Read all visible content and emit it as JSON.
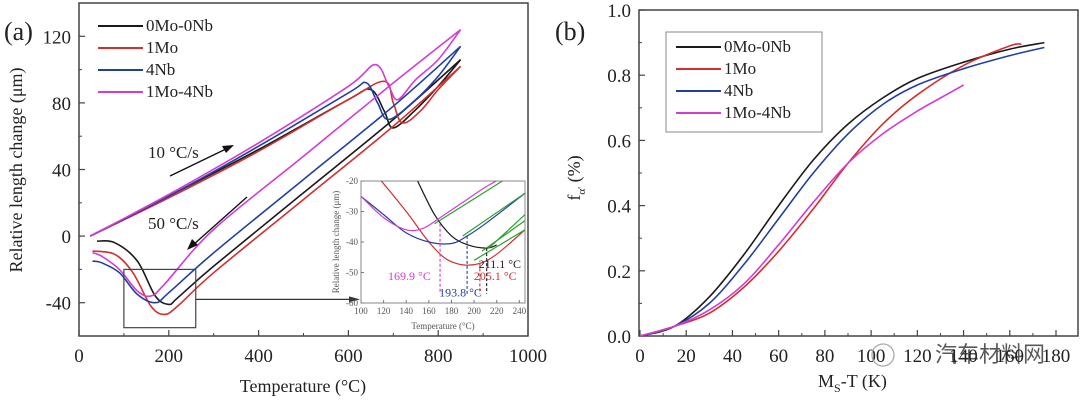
{
  "chart_data": [
    {
      "panel_label": "(a)",
      "type": "line",
      "title": "",
      "xlabel": "Temperature (°C)",
      "ylabel": "Relative length change (μm)",
      "xlim": [
        0,
        1000
      ],
      "ylim": [
        -60,
        140
      ],
      "xticks": [
        0,
        200,
        400,
        600,
        800,
        1000
      ],
      "yticks": [
        -40,
        0,
        40,
        80,
        120
      ],
      "xtick_labels": [
        "0",
        "200",
        "400",
        "600",
        "800",
        "1000"
      ],
      "ytick_labels": [
        "-40",
        "0",
        "40",
        "80",
        "120"
      ],
      "legend": {
        "position": "top-left",
        "entries": [
          "0Mo-0Nb",
          "1Mo",
          "4Nb",
          "1Mo-4Nb"
        ]
      },
      "annotations": [
        "10 °C/s",
        "50 °C/s"
      ],
      "series": [
        {
          "name": "0Mo-0Nb",
          "color": "#1a1a1a",
          "heating": {
            "x": [
              25,
              200,
              400,
              600,
              650,
              680,
              700,
              750,
              800,
              850
            ],
            "y": [
              0,
              24,
              52,
              82,
              88,
              75,
              65,
              76,
              90,
              106
            ]
          },
          "cooling": {
            "x": [
              850,
              700,
              500,
              300,
              220,
              200,
              170,
              130,
              80,
              40
            ],
            "y": [
              106,
              70,
              26,
              -18,
              -37,
              -41,
              -36,
              -15,
              -4,
              -3
            ]
          }
        },
        {
          "name": "1Mo",
          "color": "#d03030",
          "heating": {
            "x": [
              25,
              200,
              400,
              600,
              680,
              700,
              720,
              760,
              800,
              850
            ],
            "y": [
              0,
              23,
              51,
              82,
              93,
              80,
              68,
              75,
              88,
              102
            ]
          },
          "cooling": {
            "x": [
              850,
              700,
              500,
              300,
              220,
              190,
              160,
              120,
              80,
              30
            ],
            "y": [
              102,
              66,
              22,
              -22,
              -42,
              -47,
              -42,
              -22,
              -11,
              -9
            ]
          }
        },
        {
          "name": "4Nb",
          "color": "#2040a0",
          "heating": {
            "x": [
              25,
              200,
              400,
              600,
              640,
              665,
              690,
              750,
              800,
              850
            ],
            "y": [
              0,
              24,
              54,
              86,
              92,
              80,
              70,
              82,
              96,
              114
            ]
          },
          "cooling": {
            "x": [
              850,
              700,
              500,
              300,
              200,
              170,
              130,
              90,
              50,
              30
            ],
            "y": [
              114,
              78,
              34,
              -10,
              -34,
              -40,
              -35,
              -22,
              -16,
              -15
            ]
          }
        },
        {
          "name": "1Mo-4Nb",
          "color": "#d23cd2",
          "heating": {
            "x": [
              25,
              200,
              400,
              600,
              660,
              690,
              710,
              750,
              800,
              850
            ],
            "y": [
              0,
              25,
              56,
              90,
              103,
              90,
              82,
              94,
              106,
              124
            ]
          },
          "cooling": {
            "x": [
              850,
              700,
              500,
              300,
              190,
              160,
              130,
              90,
              50,
              30
            ],
            "y": [
              124,
              92,
              48,
              4,
              -29,
              -36,
              -33,
              -20,
              -12,
              -10
            ]
          }
        }
      ],
      "zoom_box": {
        "xlim": [
          100,
          260
        ],
        "ylim": [
          -55,
          -20
        ]
      },
      "inset": {
        "xlabel": "Temperature (°C)",
        "ylabel": "Relative length change (μm)",
        "xlim": [
          100,
          245
        ],
        "ylim": [
          -60,
          -20
        ],
        "xticks": [
          100,
          120,
          140,
          160,
          180,
          200,
          220,
          240
        ],
        "yticks": [
          -60,
          -50,
          -40,
          -30,
          -20
        ],
        "xtick_labels": [
          "100",
          "120",
          "140",
          "160",
          "180",
          "200",
          "220",
          "240"
        ],
        "ytick_labels": [
          "-60",
          "-50",
          "-40",
          "-30",
          "-20"
        ],
        "fit_line_color": "#2ca02c",
        "series": [
          {
            "name": "0Mo-0Nb",
            "color": "#1a1a1a",
            "x": [
              150,
              165,
              180,
              195,
              211,
              220
            ],
            "y": [
              -20,
              -31,
              -38,
              -41,
              -42,
              -41
            ]
          },
          {
            "name": "1Mo",
            "color": "#d03030",
            "x": [
              118,
              140,
              160,
              175,
              190,
              205,
              220,
              245
            ],
            "y": [
              -20,
              -30,
              -40,
              -45.5,
              -47.5,
              -47,
              -44,
              -36
            ]
          },
          {
            "name": "4Nb",
            "color": "#2040a0",
            "x": [
              100,
              120,
              140,
              160,
              180,
              194,
              210,
              245
            ],
            "y": [
              -25,
              -31,
              -37,
              -40,
              -40.5,
              -38,
              -34,
              -24
            ]
          },
          {
            "name": "1Mo-4Nb",
            "color": "#d23cd2",
            "x": [
              100,
              120,
              140,
              155,
              170,
              190,
              210,
              230
            ],
            "y": [
              -25,
              -32,
              -36,
              -35.5,
              -32,
              -27,
              -22,
              -18
            ]
          }
        ],
        "callouts": [
          {
            "label": "169.9 °C",
            "x": 169.9,
            "color": "#d23cd2"
          },
          {
            "label": "193.8 °C",
            "x": 193.8,
            "color": "#2040a0"
          },
          {
            "label": "205.1 °C",
            "x": 205.1,
            "color": "#d03030"
          },
          {
            "label": "211.1 °C",
            "x": 211.1,
            "color": "#1a1a1a"
          }
        ]
      }
    },
    {
      "panel_label": "(b)",
      "type": "line",
      "title": "",
      "xlabel": "Ms-T (K)",
      "ylabel": "fα' (%)",
      "xlim": [
        0,
        190
      ],
      "ylim": [
        0,
        1.0
      ],
      "xticks": [
        0,
        20,
        40,
        60,
        80,
        100,
        120,
        140,
        160,
        180
      ],
      "yticks": [
        0.0,
        0.2,
        0.4,
        0.6,
        0.8,
        1.0
      ],
      "xtick_labels": [
        "0",
        "20",
        "40",
        "60",
        "80",
        "100",
        "120",
        "140",
        "160",
        "180"
      ],
      "ytick_labels": [
        "0.0",
        "0.2",
        "0.4",
        "0.6",
        "0.8",
        "1.0"
      ],
      "legend": {
        "position": "top-left",
        "entries": [
          "0Mo-0Nb",
          "1Mo",
          "4Nb",
          "1Mo-4Nb"
        ]
      },
      "series": [
        {
          "name": "0Mo-0Nb",
          "color": "#1a1a1a",
          "x": [
            0,
            15,
            30,
            45,
            60,
            75,
            90,
            105,
            120,
            140,
            160,
            175
          ],
          "y": [
            0,
            0.03,
            0.12,
            0.25,
            0.4,
            0.54,
            0.65,
            0.73,
            0.79,
            0.84,
            0.88,
            0.9
          ]
        },
        {
          "name": "1Mo",
          "color": "#d03030",
          "x": [
            0,
            15,
            30,
            45,
            60,
            75,
            90,
            105,
            120,
            140,
            160,
            165
          ],
          "y": [
            0,
            0.03,
            0.07,
            0.15,
            0.26,
            0.39,
            0.53,
            0.65,
            0.74,
            0.83,
            0.89,
            0.895
          ]
        },
        {
          "name": "4Nb",
          "color": "#2040a0",
          "x": [
            0,
            15,
            30,
            45,
            60,
            75,
            90,
            105,
            120,
            140,
            160,
            175
          ],
          "y": [
            0,
            0.03,
            0.1,
            0.22,
            0.36,
            0.5,
            0.62,
            0.71,
            0.77,
            0.82,
            0.86,
            0.885
          ]
        },
        {
          "name": "1Mo-4Nb",
          "color": "#d23cd2",
          "x": [
            0,
            15,
            30,
            45,
            60,
            75,
            90,
            105,
            120,
            130,
            140
          ],
          "y": [
            0,
            0.03,
            0.08,
            0.16,
            0.28,
            0.41,
            0.53,
            0.62,
            0.69,
            0.73,
            0.77
          ]
        }
      ]
    }
  ],
  "watermark": "汽车材料网"
}
